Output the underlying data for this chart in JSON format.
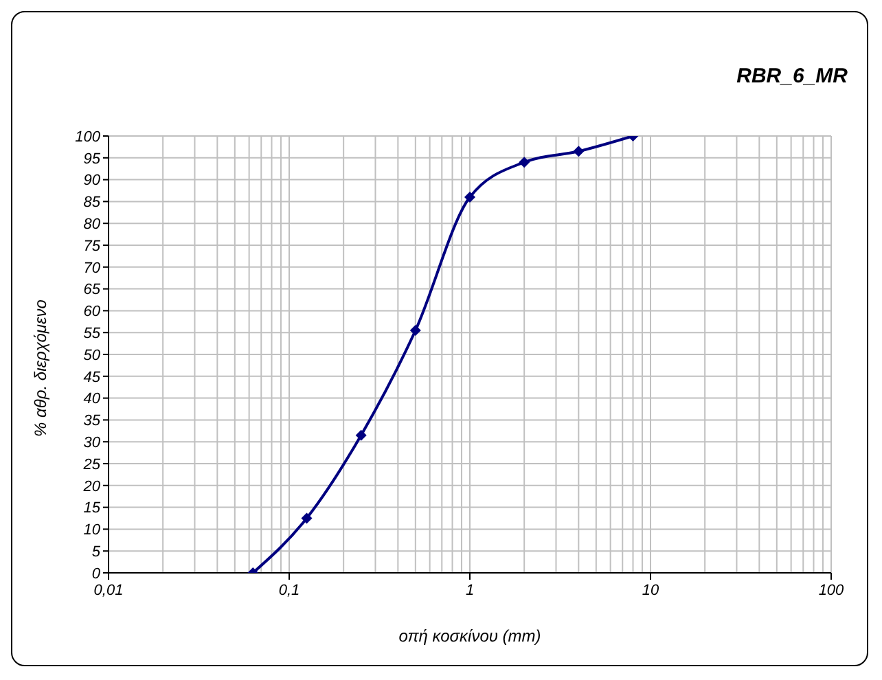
{
  "chart_data": {
    "type": "line",
    "title": "RBR_6_MR",
    "xlabel": "οπή κοσκίνου (mm)",
    "ylabel": "% αθρ. διερχόμενο",
    "x": [
      0.063,
      0.125,
      0.25,
      0.5,
      1,
      2,
      4,
      8
    ],
    "series": [
      {
        "color": "#000080",
        "values": [
          0,
          12.5,
          31.5,
          55.5,
          86,
          94,
          96.5,
          100
        ]
      }
    ],
    "log": "x",
    "xlim": [
      0.01,
      100
    ],
    "xticks": [
      {
        "value": 0.01,
        "label": "0,01"
      },
      {
        "value": 0.02,
        "label": null
      },
      {
        "value": 0.03,
        "label": null
      },
      {
        "value": 0.04,
        "label": null
      },
      {
        "value": 0.05,
        "label": null
      },
      {
        "value": 0.06,
        "label": null
      },
      {
        "value": 0.07,
        "label": null
      },
      {
        "value": 0.08,
        "label": null
      },
      {
        "value": 0.09,
        "label": null
      },
      {
        "value": 0.1,
        "label": "0,1"
      },
      {
        "value": 0.2,
        "label": null
      },
      {
        "value": 0.3,
        "label": null
      },
      {
        "value": 0.4,
        "label": null
      },
      {
        "value": 0.5,
        "label": null
      },
      {
        "value": 0.6,
        "label": null
      },
      {
        "value": 0.7,
        "label": null
      },
      {
        "value": 0.8,
        "label": null
      },
      {
        "value": 0.9,
        "label": null
      },
      {
        "value": 1,
        "label": "1"
      },
      {
        "value": 2,
        "label": null
      },
      {
        "value": 3,
        "label": null
      },
      {
        "value": 4,
        "label": null
      },
      {
        "value": 5,
        "label": null
      },
      {
        "value": 6,
        "label": null
      },
      {
        "value": 7,
        "label": null
      },
      {
        "value": 8,
        "label": null
      },
      {
        "value": 9,
        "label": null
      },
      {
        "value": 10,
        "label": "10"
      },
      {
        "value": 20,
        "label": null
      },
      {
        "value": 30,
        "label": null
      },
      {
        "value": 40,
        "label": null
      },
      {
        "value": 50,
        "label": null
      },
      {
        "value": 60,
        "label": null
      },
      {
        "value": 70,
        "label": null
      },
      {
        "value": 80,
        "label": null
      },
      {
        "value": 90,
        "label": null
      },
      {
        "value": 100,
        "label": "100"
      }
    ],
    "ylim": [
      0,
      100
    ],
    "yticks": [
      0,
      5,
      10,
      15,
      20,
      25,
      30,
      35,
      40,
      45,
      50,
      55,
      60,
      65,
      70,
      75,
      80,
      85,
      90,
      95,
      100
    ],
    "grid": true,
    "marker": "diamond",
    "line_style": "solid",
    "legend": false
  }
}
